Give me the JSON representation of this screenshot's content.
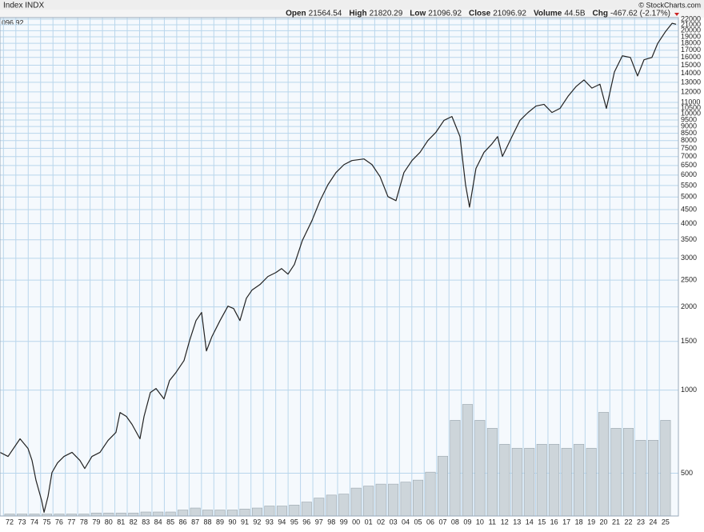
{
  "chart_data": {
    "type": "line",
    "title": "Index INDX",
    "credit": "© StockCharts.com",
    "price_label": "096.92",
    "header": [
      {
        "label": "Open",
        "value": "21564.54"
      },
      {
        "label": "High",
        "value": "21820.29"
      },
      {
        "label": "Low",
        "value": "21096.92"
      },
      {
        "label": "Close",
        "value": "21096.92"
      },
      {
        "label": "Volume",
        "value": "44.5B"
      },
      {
        "label": "Chg",
        "value": "-467.62 (-2.17%)"
      }
    ],
    "log_scale": true,
    "grid": true,
    "color": "#222222",
    "xlim": [
      1971.72,
      2026.54
    ],
    "ylim": [
      350,
      22300
    ],
    "x": [
      1971.72,
      1972.37,
      1973.34,
      1973.98,
      1974.31,
      1974.63,
      1975.08,
      1975.28,
      1975.6,
      1975.92,
      1976.37,
      1976.89,
      1977.54,
      1978.18,
      1978.57,
      1979.15,
      1979.8,
      1980.45,
      1981.09,
      1981.42,
      1981.93,
      1982.39,
      1983.03,
      1983.36,
      1983.87,
      1984.33,
      1984.97,
      1985.42,
      1985.94,
      1986.59,
      1987.04,
      1987.56,
      1988.01,
      1988.4,
      1988.85,
      1989.5,
      1990.14,
      1990.6,
      1991.11,
      1991.63,
      1992.08,
      1992.73,
      1993.37,
      1994.02,
      1994.47,
      1994.99,
      1995.51,
      1996.15,
      1996.93,
      1997.58,
      1998.22,
      1998.87,
      1999.52,
      2000.16,
      2001.13,
      2001.78,
      2002.43,
      2003.07,
      2003.72,
      2004.36,
      2005.01,
      2005.66,
      2006.3,
      2006.95,
      2007.6,
      2008.24,
      2008.89,
      2009.34,
      2009.66,
      2010.18,
      2010.83,
      2011.47,
      2011.93,
      2012.32,
      2013.09,
      2013.74,
      2014.39,
      2015.03,
      2015.68,
      2016.32,
      2016.97,
      2017.62,
      2018.26,
      2018.91,
      2019.55,
      2020.2,
      2020.72,
      2021.37,
      2022.01,
      2022.66,
      2023.24,
      2023.76,
      2024.4,
      2024.86,
      2025.51,
      2026.03,
      2026.35
    ],
    "values": [
      595,
      575,
      666,
      615,
      556,
      471,
      399,
      361,
      412,
      503,
      545,
      575,
      595,
      556,
      520,
      575,
      595,
      657,
      703,
      829,
      803,
      751,
      666,
      803,
      980,
      1013,
      929,
      1083,
      1158,
      1279,
      1511,
      1785,
      1910,
      1386,
      1563,
      1785,
      2013,
      1973,
      1785,
      2150,
      2300,
      2410,
      2577,
      2664,
      2753,
      2628,
      2849,
      3477,
      4108,
      4848,
      5538,
      6129,
      6549,
      6775,
      6866,
      6549,
      5924,
      5014,
      4848,
      6129,
      6775,
      7252,
      8010,
      8578,
      9470,
      9780,
      8270,
      5538,
      4594,
      6340,
      7252,
      7780,
      8270,
      7010,
      8270,
      9470,
      10110,
      10670,
      10820,
      10110,
      10460,
      11570,
      12540,
      13260,
      12390,
      12800,
      10460,
      14180,
      16220,
      16000,
      13710,
      15690,
      16000,
      17960,
      19880,
      21270,
      21097
    ],
    "yticks": [
      500,
      1000,
      1500,
      2000,
      2500,
      3000,
      3500,
      4000,
      4500,
      5000,
      5500,
      6000,
      6500,
      7000,
      7500,
      8000,
      8500,
      9000,
      9500,
      10000,
      10500,
      11000,
      12000,
      13000,
      14000,
      15000,
      16000,
      17000,
      18000,
      19000,
      20000,
      21000,
      22000
    ],
    "xticks": [
      {
        "value": 1972,
        "label": "72"
      },
      {
        "value": 1973,
        "label": "73"
      },
      {
        "value": 1974,
        "label": "74"
      },
      {
        "value": 1975,
        "label": "75"
      },
      {
        "value": 1976,
        "label": "76"
      },
      {
        "value": 1977,
        "label": "77"
      },
      {
        "value": 1978,
        "label": "78"
      },
      {
        "value": 1979,
        "label": "79"
      },
      {
        "value": 1980,
        "label": "80"
      },
      {
        "value": 1981,
        "label": "81"
      },
      {
        "value": 1982,
        "label": "82"
      },
      {
        "value": 1983,
        "label": "83"
      },
      {
        "value": 1984,
        "label": "84"
      },
      {
        "value": 1985,
        "label": "85"
      },
      {
        "value": 1986,
        "label": "86"
      },
      {
        "value": 1987,
        "label": "87"
      },
      {
        "value": 1988,
        "label": "88"
      },
      {
        "value": 1989,
        "label": "89"
      },
      {
        "value": 1990,
        "label": "90"
      },
      {
        "value": 1991,
        "label": "91"
      },
      {
        "value": 1992,
        "label": "92"
      },
      {
        "value": 1993,
        "label": "93"
      },
      {
        "value": 1994,
        "label": "94"
      },
      {
        "value": 1995,
        "label": "95"
      },
      {
        "value": 1996,
        "label": "96"
      },
      {
        "value": 1997,
        "label": "97"
      },
      {
        "value": 1998,
        "label": "98"
      },
      {
        "value": 1999,
        "label": "99"
      },
      {
        "value": 2000,
        "label": "00"
      },
      {
        "value": 2001,
        "label": "01"
      },
      {
        "value": 2002,
        "label": "02"
      },
      {
        "value": 2003,
        "label": "03"
      },
      {
        "value": 2004,
        "label": "04"
      },
      {
        "value": 2005,
        "label": "05"
      },
      {
        "value": 2006,
        "label": "06"
      },
      {
        "value": 2007,
        "label": "07"
      },
      {
        "value": 2008,
        "label": "08"
      },
      {
        "value": 2009,
        "label": "09"
      },
      {
        "value": 2010,
        "label": "10"
      },
      {
        "value": 2011,
        "label": "11"
      },
      {
        "value": 2012,
        "label": "12"
      },
      {
        "value": 2013,
        "label": "13"
      },
      {
        "value": 2014,
        "label": "14"
      },
      {
        "value": 2015,
        "label": "15"
      },
      {
        "value": 2016,
        "label": "16"
      },
      {
        "value": 2017,
        "label": "17"
      },
      {
        "value": 2018,
        "label": "18"
      },
      {
        "value": 2019,
        "label": "19"
      },
      {
        "value": 2020,
        "label": "20"
      },
      {
        "value": 2021,
        "label": "21"
      },
      {
        "value": 2022,
        "label": "22"
      },
      {
        "value": 2023,
        "label": "23"
      },
      {
        "value": 2024,
        "label": "24"
      },
      {
        "value": 2025,
        "label": "25"
      }
    ],
    "volume": {
      "axis": "y2",
      "color": "#9aa6ae",
      "x": [
        1972.5,
        1973.5,
        1974.5,
        1975.5,
        1976.5,
        1977.5,
        1978.5,
        1979.5,
        1980.5,
        1981.5,
        1982.5,
        1983.5,
        1984.5,
        1985.5,
        1986.5,
        1987.5,
        1988.5,
        1989.5,
        1990.5,
        1991.5,
        1992.5,
        1993.5,
        1994.5,
        1995.5,
        1996.5,
        1997.5,
        1998.5,
        1999.5,
        2000.5,
        2001.5,
        2002.5,
        2003.5,
        2004.5,
        2005.5,
        2006.5,
        2007.5,
        2008.5,
        2009.5,
        2010.5,
        2011.5,
        2012.5,
        2013.5,
        2014.5,
        2015.5,
        2016.5,
        2017.5,
        2018.5,
        2019.5,
        2020.5,
        2021.5,
        2022.5,
        2023.5,
        2024.5,
        2025.5
      ],
      "values": [
        2,
        2,
        2,
        2,
        2,
        2,
        2,
        3,
        3,
        3,
        3,
        4,
        4,
        4,
        6,
        8,
        6,
        6,
        6,
        7,
        8,
        10,
        10,
        11,
        14,
        18,
        21,
        22,
        28,
        30,
        32,
        32,
        34,
        36,
        44,
        60,
        96,
        112,
        96,
        88,
        72,
        68,
        68,
        72,
        72,
        68,
        72,
        68,
        104,
        88,
        88,
        76,
        76,
        96
      ]
    },
    "y2lim": [
      0,
      500
    ]
  }
}
